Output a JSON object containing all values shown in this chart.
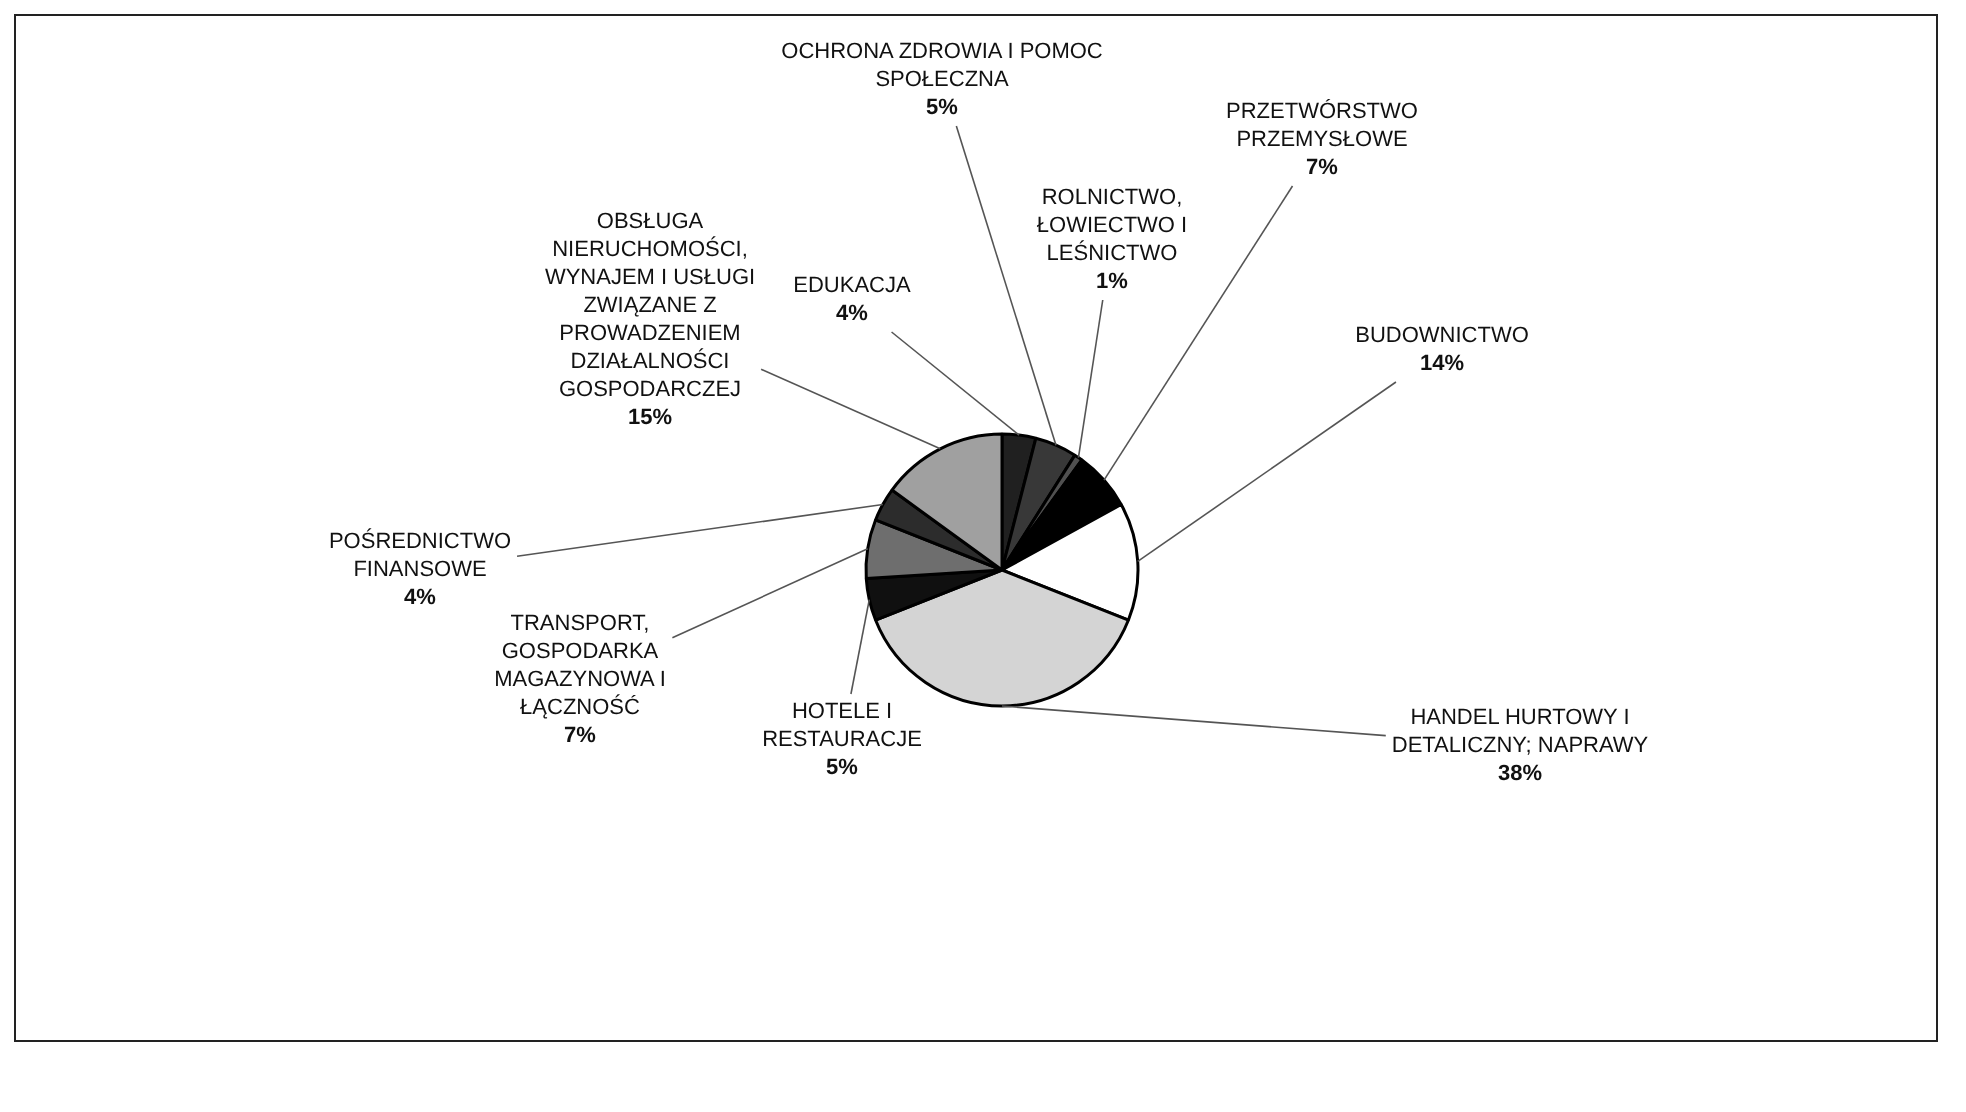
{
  "chart_data": {
    "type": "pie",
    "categories": [
      "EDUKACJA",
      "OCHRONA ZDROWIA I POMOC SPOŁECZNA",
      "ROLNICTWO, ŁOWIECTWO I LEŚNICTWO",
      "PRZETWÓRSTWO PRZEMYSŁOWE",
      "BUDOWNICTWO",
      "HANDEL HURTOWY I DETALICZNY; NAPRAWY",
      "HOTELE I RESTAURACJE",
      "TRANSPORT, GOSPODARKA MAGAZYNOWA I ŁĄCZNOŚĆ",
      "POŚREDNICTWO FINANSOWE",
      "OBSŁUGA NIERUCHOMOŚCI, WYNAJEM I USŁUGI ZWIĄZANE Z PROWADZENIEM DZIAŁALNOŚCI GOSPODARCZEJ"
    ],
    "values": [
      4,
      5,
      1,
      7,
      14,
      38,
      5,
      7,
      4,
      15
    ],
    "colors": [
      "#202020",
      "#383838",
      "#505050",
      "#000000",
      "#ffffff",
      "#d4d4d4",
      "#101010",
      "#6e6e6e",
      "#2c2c2c",
      "#a0a0a0"
    ],
    "value_labels": [
      "4%",
      "5%",
      "1%",
      "7%",
      "14%",
      "38%",
      "5%",
      "7%",
      "4%",
      "15%"
    ]
  }
}
